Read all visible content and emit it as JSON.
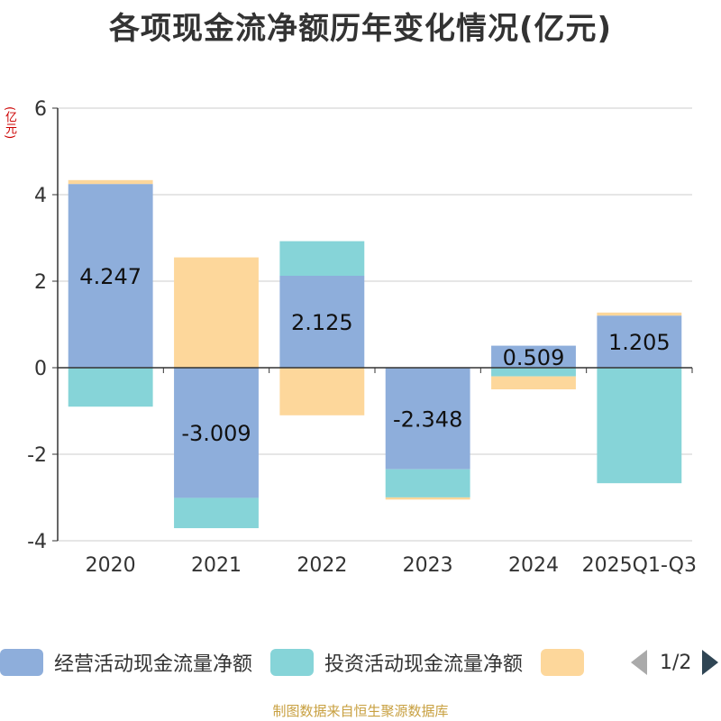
{
  "chart_data": {
    "type": "bar",
    "stacked": true,
    "title": "各项现金流净额历年变化情况(亿元)",
    "ylabel": "(亿元)",
    "ylim": [
      -4,
      6
    ],
    "yticks": [
      6,
      4,
      2,
      0,
      -2,
      -4
    ],
    "categories": [
      "2020",
      "2021",
      "2022",
      "2023",
      "2024",
      "2025Q1-Q3"
    ],
    "series": [
      {
        "name": "经营活动现金流量净额",
        "color": "#8eaedb",
        "values": [
          4.247,
          -3.009,
          2.125,
          -2.348,
          0.509,
          1.205
        ],
        "labels": [
          "4.247",
          "-3.009",
          "2.125",
          "-2.348",
          "0.509",
          "1.205"
        ]
      },
      {
        "name": "投资活动现金流量净额",
        "color": "#86d4d8",
        "values": [
          -0.9,
          -0.7,
          0.8,
          -0.65,
          -0.2,
          -2.67
        ]
      },
      {
        "name": "",
        "color": "#fdd79b",
        "values": [
          0.09,
          2.55,
          -1.1,
          -0.05,
          -0.3,
          0.07
        ]
      }
    ]
  },
  "legend": {
    "items": [
      {
        "label": "经营活动现金流量净额",
        "color": "#8eaedb"
      },
      {
        "label": "投资活动现金流量净额",
        "color": "#86d4d8"
      },
      {
        "label": "",
        "color": "#fdd79b"
      }
    ],
    "page": "1/2"
  },
  "source": "制图数据来自恒生聚源数据库"
}
